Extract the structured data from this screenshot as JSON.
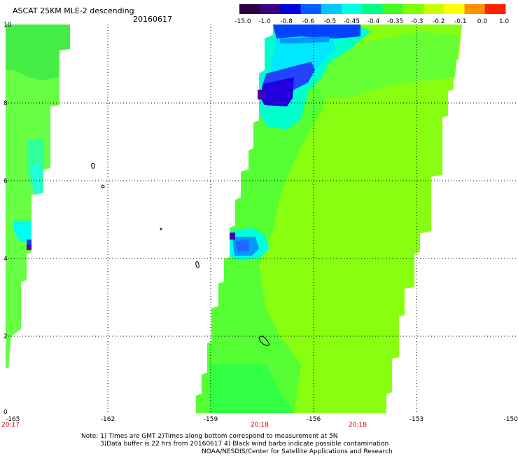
{
  "title": "ASCAT 25KM MLE-2 descending",
  "date": "20160617",
  "colorbar": {
    "labels": [
      "-15.0",
      "-1.0",
      "-0.8",
      "-0.6",
      "-0.5",
      "-0.45",
      "-0.4",
      "-0.35",
      "-0.3",
      "-0.2",
      "-0.1",
      "0.0",
      "1.0"
    ],
    "colors": [
      "#2a003f",
      "#3a0080",
      "#0000e0",
      "#0060ff",
      "#00c8ff",
      "#00ffe0",
      "#00ff80",
      "#40ff20",
      "#80ff00",
      "#c8ff00",
      "#ffff00",
      "#ff9000",
      "#ff2000"
    ]
  },
  "axes": {
    "lon_labels": [
      "-165",
      "-162",
      "-159",
      "-156",
      "-153",
      "-150"
    ],
    "lat_labels": [
      "0",
      "2",
      "4",
      "6",
      "8",
      "10"
    ],
    "times": [
      "20:17",
      "20:18",
      "20:18"
    ]
  },
  "note": [
    "Note: 1) Times are GMT 2)Times along bottom correspond to measurement at 5N",
    "3)Data buffer is 22 hrs from 20160617 4) Black wind barbs indicate possible contamination",
    "NOAA/NESDIS/Center for Satellite Applications and Research"
  ]
}
